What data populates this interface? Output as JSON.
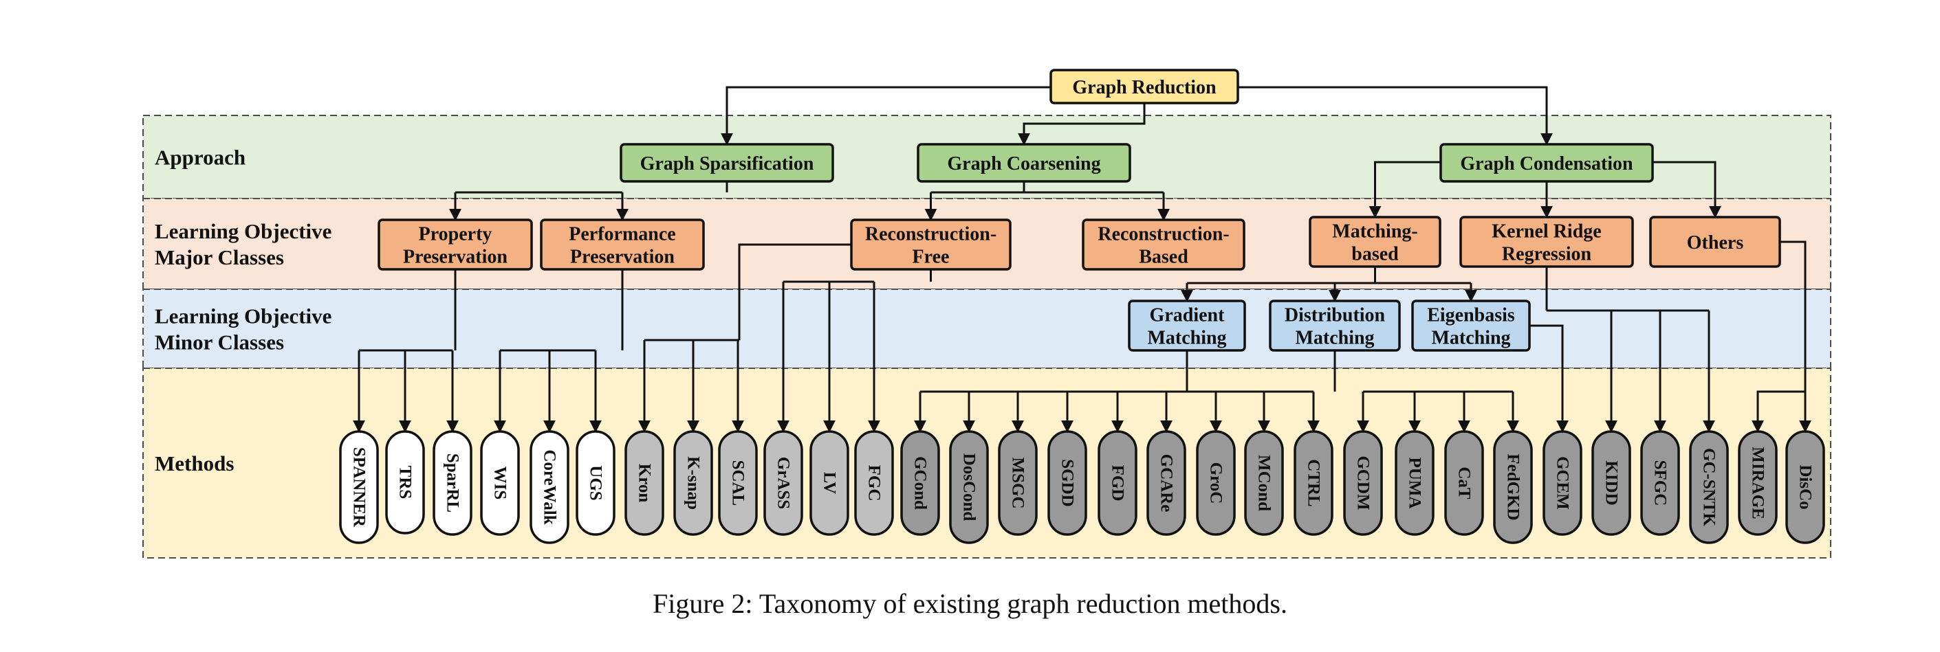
{
  "bands": [
    {
      "id": "approach",
      "label_lines": [
        "Approach"
      ],
      "fill": "#e2efda"
    },
    {
      "id": "major",
      "label_lines": [
        "Learning Objective",
        "Major Classes"
      ],
      "fill": "#fbe5d6"
    },
    {
      "id": "minor",
      "label_lines": [
        "Learning Objective",
        "Minor Classes"
      ],
      "fill": "#deebf7"
    },
    {
      "id": "methods",
      "label_lines": [
        "Methods"
      ],
      "fill": "#fff2cc"
    }
  ],
  "nodes": {
    "root": {
      "lines": [
        "Graph Reduction"
      ],
      "fill": "#ffe699"
    },
    "spars": {
      "lines": [
        "Graph Sparsification"
      ],
      "fill": "#a9d18e"
    },
    "coars": {
      "lines": [
        "Graph Coarsening"
      ],
      "fill": "#a9d18e"
    },
    "cond": {
      "lines": [
        "Graph Condensation"
      ],
      "fill": "#a9d18e"
    },
    "prop": {
      "lines": [
        "Property",
        "Preservation"
      ],
      "fill": "#f4b183"
    },
    "perf": {
      "lines": [
        "Performance",
        "Preservation"
      ],
      "fill": "#f4b183"
    },
    "recf": {
      "lines": [
        "Reconstruction-",
        "Free"
      ],
      "fill": "#f4b183"
    },
    "recb": {
      "lines": [
        "Reconstruction-",
        "Based"
      ],
      "fill": "#f4b183"
    },
    "match": {
      "lines": [
        "Matching-",
        "based"
      ],
      "fill": "#f4b183"
    },
    "krr": {
      "lines": [
        "Kernel Ridge",
        "Regression"
      ],
      "fill": "#f4b183"
    },
    "others": {
      "lines": [
        "Others"
      ],
      "fill": "#f4b183"
    },
    "grad": {
      "lines": [
        "Gradient",
        "Matching"
      ],
      "fill": "#bdd7ee"
    },
    "dist": {
      "lines": [
        "Distribution",
        "Matching"
      ],
      "fill": "#bdd7ee"
    },
    "eigen": {
      "lines": [
        "Eigenbasis",
        "Matching"
      ],
      "fill": "#bdd7ee"
    }
  },
  "methods": [
    {
      "label": "SPANNER",
      "fill": "#ffffff"
    },
    {
      "label": "TRS",
      "fill": "#ffffff"
    },
    {
      "label": "SparRL",
      "fill": "#ffffff"
    },
    {
      "label": "WIS",
      "fill": "#ffffff"
    },
    {
      "label": "CoreWalk",
      "fill": "#ffffff"
    },
    {
      "label": "UGS",
      "fill": "#ffffff"
    },
    {
      "label": "Kron",
      "fill": "#bfbfbf"
    },
    {
      "label": "K-snap",
      "fill": "#bfbfbf"
    },
    {
      "label": "SCAL",
      "fill": "#bfbfbf"
    },
    {
      "label": "GrASS",
      "fill": "#bfbfbf"
    },
    {
      "label": "LV",
      "fill": "#bfbfbf"
    },
    {
      "label": "FGC",
      "fill": "#bfbfbf"
    },
    {
      "label": "GCond",
      "fill": "#999999"
    },
    {
      "label": "DosCond",
      "fill": "#999999"
    },
    {
      "label": "MSGC",
      "fill": "#999999"
    },
    {
      "label": "SGDD",
      "fill": "#999999"
    },
    {
      "label": "FGD",
      "fill": "#999999"
    },
    {
      "label": "GCARe",
      "fill": "#999999"
    },
    {
      "label": "GroC",
      "fill": "#999999"
    },
    {
      "label": "MCond",
      "fill": "#999999"
    },
    {
      "label": "CTRL",
      "fill": "#999999"
    },
    {
      "label": "GCDM",
      "fill": "#999999"
    },
    {
      "label": "PUMA",
      "fill": "#999999"
    },
    {
      "label": "CaT",
      "fill": "#999999"
    },
    {
      "label": "FedGKD",
      "fill": "#999999"
    },
    {
      "label": "GCEM",
      "fill": "#999999"
    },
    {
      "label": "KIDD",
      "fill": "#999999"
    },
    {
      "label": "SFGC",
      "fill": "#999999"
    },
    {
      "label": "GC-SNTK",
      "fill": "#999999"
    },
    {
      "label": "MIRAGE",
      "fill": "#999999"
    },
    {
      "label": "DisCo",
      "fill": "#999999"
    }
  ],
  "edges": [
    [
      "root",
      "spars"
    ],
    [
      "root",
      "coars"
    ],
    [
      "root",
      "cond"
    ],
    [
      "spars",
      "prop"
    ],
    [
      "spars",
      "perf"
    ],
    [
      "coars",
      "recf"
    ],
    [
      "coars",
      "recb"
    ],
    [
      "cond",
      "match"
    ],
    [
      "cond",
      "krr"
    ],
    [
      "cond",
      "others"
    ],
    [
      "match",
      "grad"
    ],
    [
      "match",
      "dist"
    ],
    [
      "match",
      "eigen"
    ],
    [
      "prop",
      "SPANNER"
    ],
    [
      "prop",
      "TRS"
    ],
    [
      "prop",
      "SparRL"
    ],
    [
      "perf",
      "WIS"
    ],
    [
      "perf",
      "CoreWalk"
    ],
    [
      "perf",
      "UGS"
    ],
    [
      "recf",
      "Kron"
    ],
    [
      "recf",
      "K-snap"
    ],
    [
      "recf",
      "SCAL"
    ],
    [
      "recf",
      "GrASS"
    ],
    [
      "recf",
      "LV"
    ],
    [
      "recf",
      "FGC"
    ],
    [
      "grad",
      "GCond"
    ],
    [
      "grad",
      "DosCond"
    ],
    [
      "grad",
      "MSGC"
    ],
    [
      "grad",
      "SGDD"
    ],
    [
      "grad",
      "FGD"
    ],
    [
      "grad",
      "GCARe"
    ],
    [
      "grad",
      "GroC"
    ],
    [
      "grad",
      "MCond"
    ],
    [
      "grad",
      "CTRL"
    ],
    [
      "dist",
      "GCDM"
    ],
    [
      "dist",
      "PUMA"
    ],
    [
      "dist",
      "CaT"
    ],
    [
      "dist",
      "FedGKD"
    ],
    [
      "eigen",
      "GCEM"
    ],
    [
      "krr",
      "KIDD"
    ],
    [
      "krr",
      "SFGC"
    ],
    [
      "krr",
      "GC-SNTK"
    ],
    [
      "others",
      "MIRAGE"
    ],
    [
      "others",
      "DisCo"
    ]
  ],
  "caption": "Figure 2: Taxonomy of existing graph reduction methods."
}
